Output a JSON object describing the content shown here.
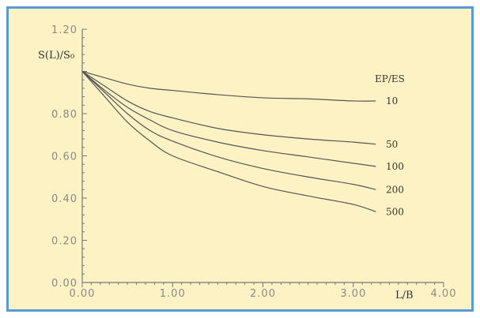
{
  "chart_data": {
    "type": "line",
    "title": "",
    "ylabel": "S(L)/S₀",
    "xlabel": "L/B",
    "legend_title": "EP/ES",
    "legend_placement": "right, at line ends",
    "xlim": [
      0,
      4
    ],
    "ylim": [
      0,
      1.2
    ],
    "xticks": [
      0,
      1,
      2,
      3,
      4
    ],
    "xtick_labels": [
      "0.00",
      "1.00",
      "2.00",
      "3.00",
      "4.00"
    ],
    "yticks": [
      0,
      0.2,
      0.4,
      0.6,
      0.8,
      1.2
    ],
    "ytick_labels": [
      "0.00",
      "0.20",
      "0.40",
      "0.60",
      "0.80",
      "1.20"
    ],
    "grid": false,
    "series": [
      {
        "name": "10",
        "x": [
          0,
          0.25,
          0.5,
          0.75,
          1.0,
          1.5,
          2.0,
          2.5,
          3.0,
          3.25
        ],
        "y": [
          1.0,
          0.97,
          0.94,
          0.92,
          0.91,
          0.89,
          0.875,
          0.87,
          0.86,
          0.86
        ]
      },
      {
        "name": "50",
        "x": [
          0,
          0.25,
          0.5,
          0.75,
          1.0,
          1.5,
          2.0,
          2.5,
          3.0,
          3.25
        ],
        "y": [
          1.0,
          0.93,
          0.86,
          0.81,
          0.78,
          0.73,
          0.7,
          0.68,
          0.665,
          0.655
        ]
      },
      {
        "name": "100",
        "x": [
          0,
          0.25,
          0.5,
          0.75,
          1.0,
          1.5,
          2.0,
          2.5,
          3.0,
          3.25
        ],
        "y": [
          1.0,
          0.91,
          0.83,
          0.77,
          0.72,
          0.665,
          0.625,
          0.595,
          0.565,
          0.55
        ]
      },
      {
        "name": "200",
        "x": [
          0,
          0.25,
          0.5,
          0.75,
          1.0,
          1.5,
          2.0,
          2.5,
          3.0,
          3.25
        ],
        "y": [
          1.0,
          0.9,
          0.8,
          0.72,
          0.67,
          0.595,
          0.54,
          0.5,
          0.465,
          0.44
        ]
      },
      {
        "name": "500",
        "x": [
          0,
          0.25,
          0.5,
          0.75,
          1.0,
          1.5,
          2.0,
          2.5,
          3.0,
          3.25
        ],
        "y": [
          1.0,
          0.88,
          0.76,
          0.67,
          0.6,
          0.525,
          0.455,
          0.41,
          0.37,
          0.335
        ]
      }
    ],
    "colors": {
      "background": "#fdf2c4",
      "border": "#5b9bd5",
      "line": "#555555",
      "axis": "#777777"
    }
  }
}
